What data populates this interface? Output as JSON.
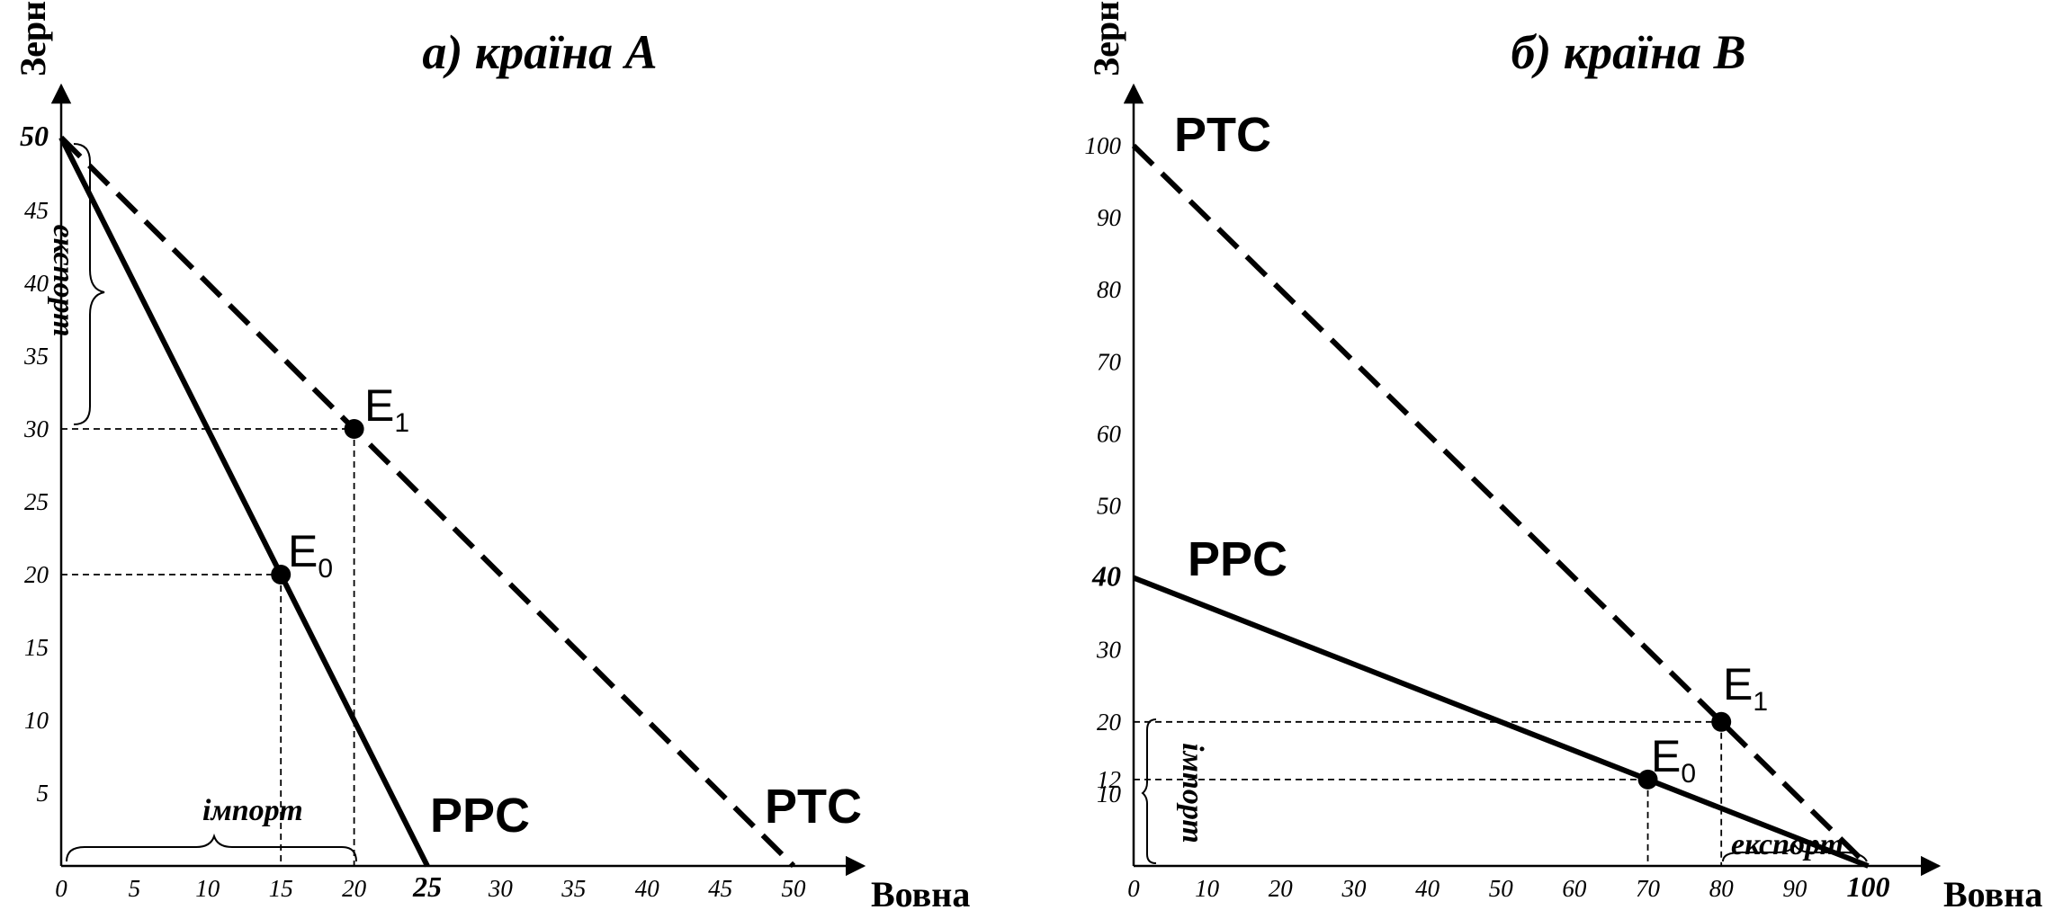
{
  "chart_data": [
    {
      "type": "line",
      "title": "а) країна А",
      "xlabel": "Вовна",
      "ylabel": "Зерно",
      "xlim": [
        0,
        55
      ],
      "ylim": [
        0,
        55
      ],
      "x_ticks": [
        {
          "v": 0,
          "t": "0"
        },
        {
          "v": 5,
          "t": "5"
        },
        {
          "v": 10,
          "t": "10"
        },
        {
          "v": 15,
          "t": "15"
        },
        {
          "v": 20,
          "t": "20"
        },
        {
          "v": 25,
          "t": "25",
          "bold": true
        },
        {
          "v": 30,
          "t": "30"
        },
        {
          "v": 35,
          "t": "35"
        },
        {
          "v": 40,
          "t": "40"
        },
        {
          "v": 45,
          "t": "45"
        },
        {
          "v": 50,
          "t": "50"
        }
      ],
      "y_ticks": [
        {
          "v": 5,
          "t": "5"
        },
        {
          "v": 10,
          "t": "10"
        },
        {
          "v": 15,
          "t": "15"
        },
        {
          "v": 20,
          "t": "20"
        },
        {
          "v": 25,
          "t": "25"
        },
        {
          "v": 30,
          "t": "30"
        },
        {
          "v": 35,
          "t": "35"
        },
        {
          "v": 40,
          "t": "40"
        },
        {
          "v": 45,
          "t": "45"
        },
        {
          "v": 50,
          "t": "50",
          "bold": true
        }
      ],
      "series": [
        {
          "name": "PPC",
          "style": "solid",
          "points": [
            [
              0,
              50
            ],
            [
              25,
              0
            ]
          ],
          "label_at": [
            25,
            0
          ]
        },
        {
          "name": "PTC",
          "style": "dashed",
          "points": [
            [
              0,
              50
            ],
            [
              50,
              0
            ]
          ],
          "label_at": [
            50,
            0
          ]
        }
      ],
      "points": [
        {
          "label": "E",
          "sub": "0",
          "x": 15,
          "y": 20
        },
        {
          "label": "E",
          "sub": "1",
          "x": 20,
          "y": 30
        }
      ],
      "annotations": [
        {
          "text": "імпорт",
          "axis": "x",
          "from": 0,
          "to": 20
        },
        {
          "text": "експорт",
          "axis": "y",
          "from": 30,
          "to": 50
        }
      ]
    },
    {
      "type": "line",
      "title": "б) країна В",
      "xlabel": "Вовна",
      "ylabel": "Зерно",
      "xlim": [
        0,
        110
      ],
      "ylim": [
        0,
        110
      ],
      "x_ticks": [
        {
          "v": 0,
          "t": "0"
        },
        {
          "v": 10,
          "t": "10"
        },
        {
          "v": 20,
          "t": "20"
        },
        {
          "v": 30,
          "t": "30"
        },
        {
          "v": 40,
          "t": "40"
        },
        {
          "v": 50,
          "t": "50"
        },
        {
          "v": 60,
          "t": "60"
        },
        {
          "v": 70,
          "t": "70"
        },
        {
          "v": 80,
          "t": "80"
        },
        {
          "v": 90,
          "t": "90"
        },
        {
          "v": 100,
          "t": "100",
          "bold": true
        }
      ],
      "y_ticks": [
        {
          "v": 10,
          "t": "10"
        },
        {
          "v": 12,
          "t": "12"
        },
        {
          "v": 20,
          "t": "20"
        },
        {
          "v": 30,
          "t": "30"
        },
        {
          "v": 40,
          "t": "40",
          "bold": true
        },
        {
          "v": 50,
          "t": "50"
        },
        {
          "v": 60,
          "t": "60"
        },
        {
          "v": 70,
          "t": "70"
        },
        {
          "v": 80,
          "t": "80"
        },
        {
          "v": 90,
          "t": "90"
        },
        {
          "v": 100,
          "t": "100"
        }
      ],
      "series": [
        {
          "name": "PPC",
          "style": "solid",
          "points": [
            [
              0,
              40
            ],
            [
              100,
              0
            ]
          ],
          "label_at": [
            0,
            40
          ]
        },
        {
          "name": "PTC",
          "style": "dashed",
          "points": [
            [
              0,
              100
            ],
            [
              100,
              0
            ]
          ],
          "label_at": [
            0,
            100
          ]
        }
      ],
      "points": [
        {
          "label": "E",
          "sub": "0",
          "x": 70,
          "y": 12
        },
        {
          "label": "E",
          "sub": "1",
          "x": 80,
          "y": 20
        }
      ],
      "annotations": [
        {
          "text": "імпорт",
          "axis": "y",
          "from": 0,
          "to": 20
        },
        {
          "text": "експорт",
          "axis": "x",
          "from": 80,
          "to": 100
        }
      ]
    }
  ]
}
